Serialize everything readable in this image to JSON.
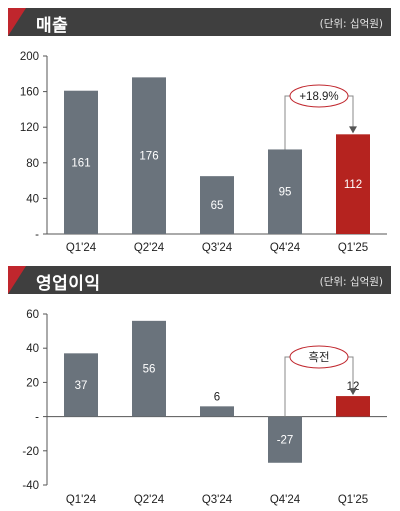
{
  "charts": {
    "revenue": {
      "header": {
        "title": "매출",
        "unit": "(단위: 십억원)"
      },
      "annotation": "+18.9%",
      "highlight_color": "#b5231f",
      "bar_color": "#6a737c"
    },
    "operating_profit": {
      "header": {
        "title": "영업이익",
        "unit": "(단위: 십억원)"
      },
      "annotation": "흑전",
      "highlight_color": "#b5231f",
      "bar_color": "#6a737c"
    }
  },
  "chart_data": [
    {
      "type": "bar",
      "title": "매출",
      "categories": [
        "Q1'24",
        "Q2'24",
        "Q3'24",
        "Q4'24",
        "Q1'25"
      ],
      "values": [
        161,
        176,
        65,
        95,
        112
      ],
      "data_labels": [
        "161",
        "176",
        "65",
        "95",
        "112"
      ],
      "ylim": [
        0,
        200
      ],
      "yticks": [
        "-",
        "40",
        "80",
        "120",
        "160",
        "200"
      ],
      "highlight_index": 4,
      "annotation": {
        "text": "+18.9%",
        "from_index": 3,
        "to_index": 4
      },
      "grid": false,
      "legend": "none"
    },
    {
      "type": "bar",
      "title": "영업이익",
      "categories": [
        "Q1'24",
        "Q2'24",
        "Q3'24",
        "Q4'24",
        "Q1'25"
      ],
      "values": [
        37,
        56,
        6,
        -27,
        12
      ],
      "data_labels": [
        "37",
        "56",
        "6",
        "-27",
        "12"
      ],
      "ylim": [
        -40,
        60
      ],
      "yticks": [
        "-40",
        "-20",
        "-",
        "20",
        "40",
        "60"
      ],
      "highlight_index": 4,
      "annotation": {
        "text": "흑전",
        "from_index": 3,
        "to_index": 4
      },
      "grid": false,
      "legend": "none"
    }
  ]
}
